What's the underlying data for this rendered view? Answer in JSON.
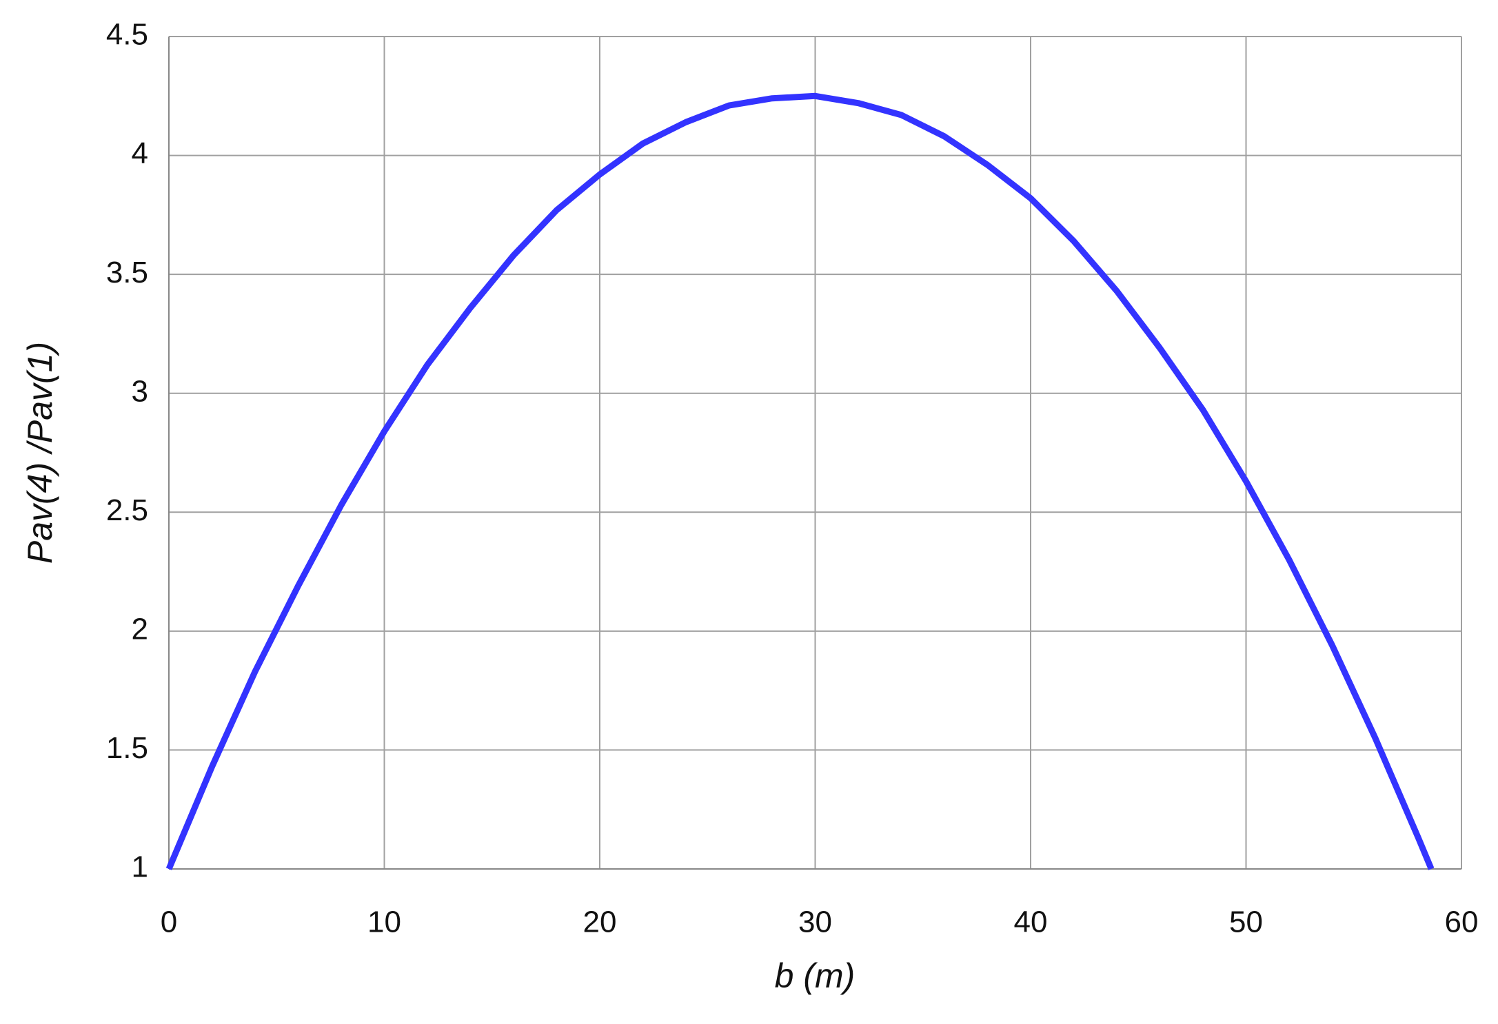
{
  "chart_data": {
    "type": "line",
    "x_label": "b (m)",
    "y_label": "Pav(4) /Pav(1)",
    "x": [
      0,
      2,
      4,
      6,
      8,
      10,
      12,
      14,
      16,
      18,
      20,
      22,
      24,
      26,
      28,
      30,
      32,
      34,
      36,
      38,
      40,
      42,
      44,
      46,
      48,
      50,
      52,
      54,
      56,
      58,
      58.6
    ],
    "series": [
      {
        "color": "#3333ff",
        "values": [
          1.0,
          1.43,
          1.83,
          2.19,
          2.53,
          2.84,
          3.12,
          3.36,
          3.58,
          3.77,
          3.92,
          4.05,
          4.14,
          4.21,
          4.24,
          4.25,
          4.22,
          4.17,
          4.08,
          3.96,
          3.82,
          3.64,
          3.43,
          3.19,
          2.93,
          2.63,
          2.3,
          1.94,
          1.55,
          1.13,
          1.0
        ]
      }
    ],
    "xlim": [
      0,
      60
    ],
    "xticks": [
      0,
      10,
      20,
      30,
      40,
      50,
      60
    ],
    "ylim": [
      1,
      4.5
    ],
    "yticks": [
      1,
      1.5,
      2,
      2.5,
      3,
      3.5,
      4,
      4.5
    ],
    "grid": true
  }
}
